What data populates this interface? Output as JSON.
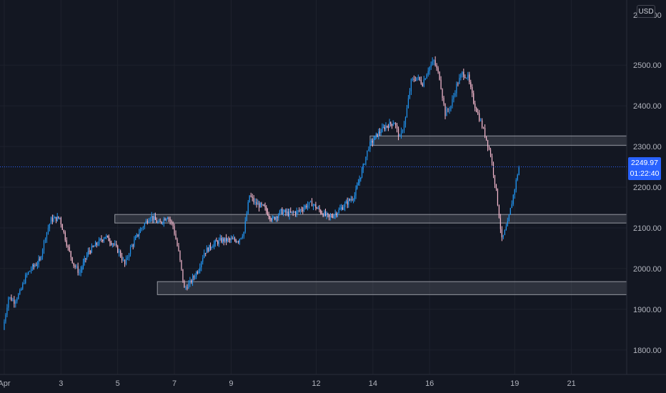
{
  "chart_data": {
    "type": "candlestick",
    "currency": "USD",
    "y_ticks": [
      "1800.00",
      "1900.00",
      "2000.00",
      "2100.00",
      "2200.00",
      "2300.00",
      "2400.00",
      "2500.00"
    ],
    "y_tick_values": [
      1800,
      1900,
      2000,
      2100,
      2200,
      2300,
      2400,
      2500
    ],
    "y_top_partial": "2600.00",
    "ylim": [
      1740,
      2660
    ],
    "x_ticks": [
      "Apr",
      "3",
      "5",
      "7",
      "9",
      "12",
      "14",
      "16",
      "19",
      "21"
    ],
    "x_tick_days": [
      1,
      3,
      5,
      7,
      9,
      12,
      14,
      16,
      19,
      21
    ],
    "xlim_days": [
      0.85,
      22.95
    ],
    "last_price": "2249.97",
    "last_price_value": 2249.97,
    "countdown": "01:22:40",
    "zones": [
      {
        "start_day": 13.9,
        "end_day": 23,
        "low": 2303,
        "high": 2326
      },
      {
        "start_day": 4.9,
        "end_day": 23,
        "low": 2112,
        "high": 2133
      },
      {
        "start_day": 6.4,
        "end_day": 23,
        "low": 1936,
        "high": 1968
      }
    ],
    "candle_anchors": [
      [
        1.0,
        1850
      ],
      [
        1.2,
        1930
      ],
      [
        1.4,
        1920
      ],
      [
        1.6,
        1940
      ],
      [
        1.8,
        1980
      ],
      [
        2.0,
        2000
      ],
      [
        2.3,
        2020
      ],
      [
        2.5,
        2080
      ],
      [
        2.7,
        2120
      ],
      [
        3.0,
        2125
      ],
      [
        3.1,
        2100
      ],
      [
        3.3,
        2050
      ],
      [
        3.5,
        2010
      ],
      [
        3.7,
        1990
      ],
      [
        4.0,
        2040
      ],
      [
        4.3,
        2060
      ],
      [
        4.6,
        2080
      ],
      [
        4.9,
        2060
      ],
      [
        5.1,
        2040
      ],
      [
        5.3,
        2010
      ],
      [
        5.5,
        2050
      ],
      [
        5.8,
        2090
      ],
      [
        6.0,
        2110
      ],
      [
        6.2,
        2130
      ],
      [
        6.5,
        2110
      ],
      [
        6.8,
        2130
      ],
      [
        7.0,
        2105
      ],
      [
        7.2,
        2040
      ],
      [
        7.4,
        1950
      ],
      [
        7.6,
        1965
      ],
      [
        7.9,
        2000
      ],
      [
        8.1,
        2040
      ],
      [
        8.4,
        2060
      ],
      [
        8.7,
        2070
      ],
      [
        9.0,
        2070
      ],
      [
        9.3,
        2070
      ],
      [
        9.5,
        2090
      ],
      [
        9.7,
        2180
      ],
      [
        9.9,
        2160
      ],
      [
        10.2,
        2150
      ],
      [
        10.5,
        2120
      ],
      [
        10.8,
        2140
      ],
      [
        11.1,
        2135
      ],
      [
        11.4,
        2140
      ],
      [
        11.7,
        2155
      ],
      [
        11.9,
        2160
      ],
      [
        12.2,
        2140
      ],
      [
        12.5,
        2125
      ],
      [
        12.8,
        2140
      ],
      [
        13.1,
        2160
      ],
      [
        13.4,
        2180
      ],
      [
        13.7,
        2250
      ],
      [
        13.9,
        2300
      ],
      [
        14.2,
        2330
      ],
      [
        14.5,
        2350
      ],
      [
        14.8,
        2360
      ],
      [
        15.0,
        2320
      ],
      [
        15.2,
        2370
      ],
      [
        15.4,
        2460
      ],
      [
        15.6,
        2470
      ],
      [
        15.8,
        2455
      ],
      [
        16.0,
        2490
      ],
      [
        16.2,
        2510
      ],
      [
        16.4,
        2470
      ],
      [
        16.6,
        2380
      ],
      [
        16.8,
        2400
      ],
      [
        17.0,
        2450
      ],
      [
        17.2,
        2480
      ],
      [
        17.4,
        2470
      ],
      [
        17.6,
        2410
      ],
      [
        17.8,
        2370
      ],
      [
        18.0,
        2330
      ],
      [
        18.2,
        2280
      ],
      [
        18.4,
        2190
      ],
      [
        18.6,
        2070
      ],
      [
        18.8,
        2110
      ],
      [
        19.0,
        2180
      ],
      [
        19.2,
        2249.97
      ]
    ]
  }
}
